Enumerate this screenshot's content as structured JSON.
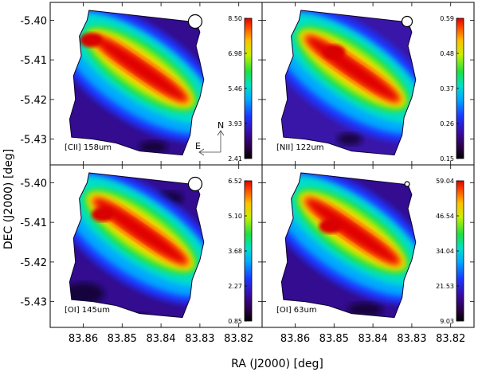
{
  "chart_data": {
    "type": "heatmap",
    "xlabel": "RA (J2000) [deg]",
    "ylabel": "DEC (J2000) [deg]",
    "x_ticks": [
      "83.86",
      "83.85",
      "83.84",
      "83.83",
      "83.82"
    ],
    "y_ticks": [
      "-5.40",
      "-5.41",
      "-5.42",
      "-5.43"
    ],
    "x_tick_values": [
      83.86,
      83.85,
      83.84,
      83.83,
      83.82
    ],
    "y_tick_values": [
      -5.4,
      -5.41,
      -5.42,
      -5.43
    ],
    "xlim": [
      83.8685,
      83.814
    ],
    "ylim": [
      -5.4365,
      -5.3955
    ],
    "colormap": "rainbow",
    "panels": [
      {
        "label": "[CII] 158um",
        "colorbar_ticks": [
          "8.50",
          "6.98",
          "5.46",
          "3.93",
          "2.41"
        ],
        "colorbar_range": [
          2.41,
          8.5
        ],
        "compass": {
          "north": "N",
          "east": "E"
        },
        "beam": "large",
        "peak": {
          "ra": 83.858,
          "dec": -5.405
        }
      },
      {
        "label": "[NII] 122um",
        "colorbar_ticks": [
          "0.59",
          "0.48",
          "0.37",
          "0.26",
          "0.15"
        ],
        "colorbar_range": [
          0.15,
          0.59
        ],
        "beam": "medium",
        "peak": {
          "ra": 83.85,
          "dec": -5.408
        }
      },
      {
        "label": "[OI] 145um",
        "colorbar_ticks": [
          "6.52",
          "5.10",
          "3.68",
          "2.27",
          "0.85"
        ],
        "colorbar_range": [
          0.85,
          6.52
        ],
        "beam": "large",
        "peak": {
          "ra": 83.855,
          "dec": -5.408
        }
      },
      {
        "label": "[OI] 63um",
        "colorbar_ticks": [
          "59.04",
          "46.54",
          "34.04",
          "21.53",
          "9.03"
        ],
        "colorbar_range": [
          9.03,
          59.04
        ],
        "beam": "small",
        "peak": {
          "ra": 83.851,
          "dec": -5.411
        }
      }
    ]
  }
}
